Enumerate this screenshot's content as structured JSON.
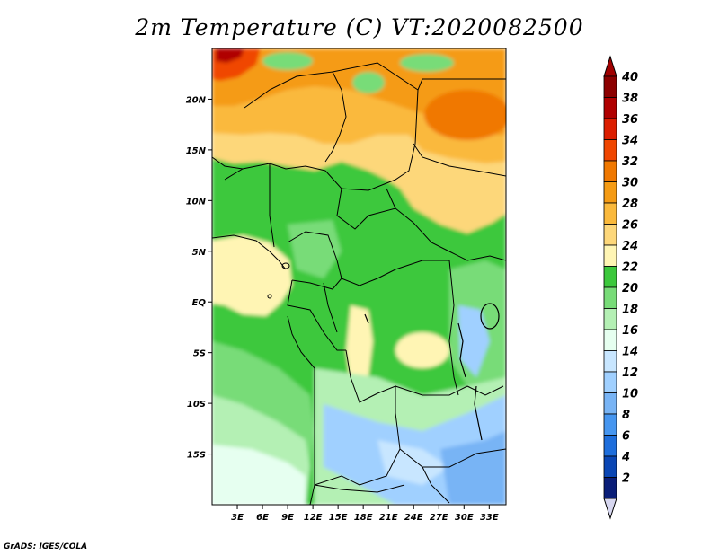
{
  "title": "2m Temperature (C) VT:2020082500",
  "credit": "GrADS: IGES/COLA",
  "map": {
    "lon_range": [
      0,
      35
    ],
    "lat_range": [
      -20,
      25
    ],
    "lat_ticks": [
      {
        "value": 20,
        "label": "20N"
      },
      {
        "value": 15,
        "label": "15N"
      },
      {
        "value": 10,
        "label": "10N"
      },
      {
        "value": 5,
        "label": "5N"
      },
      {
        "value": 0,
        "label": "EQ"
      },
      {
        "value": -5,
        "label": "5S"
      },
      {
        "value": -10,
        "label": "10S"
      },
      {
        "value": -15,
        "label": "15S"
      }
    ],
    "lon_ticks": [
      {
        "value": 3,
        "label": "3E"
      },
      {
        "value": 6,
        "label": "6E"
      },
      {
        "value": 9,
        "label": "9E"
      },
      {
        "value": 12,
        "label": "12E"
      },
      {
        "value": 15,
        "label": "15E"
      },
      {
        "value": 18,
        "label": "18E"
      },
      {
        "value": 21,
        "label": "21E"
      },
      {
        "value": 24,
        "label": "24E"
      },
      {
        "value": 27,
        "label": "27E"
      },
      {
        "value": 30,
        "label": "30E"
      },
      {
        "value": 33,
        "label": "33E"
      }
    ]
  },
  "colorbar": {
    "levels": [
      {
        "label": "40",
        "color": "#8c0000"
      },
      {
        "label": "38",
        "color": "#b00000"
      },
      {
        "label": "36",
        "color": "#dc1e00"
      },
      {
        "label": "34",
        "color": "#f04600"
      },
      {
        "label": "32",
        "color": "#f07800"
      },
      {
        "label": "30",
        "color": "#f59b14"
      },
      {
        "label": "28",
        "color": "#fab93c"
      },
      {
        "label": "26",
        "color": "#fdd77a"
      },
      {
        "label": "24",
        "color": "#fff5b4"
      },
      {
        "label": "22",
        "color": "#3cc83c"
      },
      {
        "label": "20",
        "color": "#78dc78"
      },
      {
        "label": "18",
        "color": "#b4f0b4"
      },
      {
        "label": "16",
        "color": "#e6fff0"
      },
      {
        "label": "14",
        "color": "#c8e6ff"
      },
      {
        "label": "12",
        "color": "#a0d0ff"
      },
      {
        "label": "10",
        "color": "#78b4f5"
      },
      {
        "label": "8",
        "color": "#4696f0"
      },
      {
        "label": "6",
        "color": "#1e6edc"
      },
      {
        "label": "4",
        "color": "#0a46b4"
      },
      {
        "label": "2",
        "color": "#0a1e78"
      }
    ],
    "top_arrow_color": "#a00000",
    "bottom_arrow_color": "#d7d7f0"
  }
}
